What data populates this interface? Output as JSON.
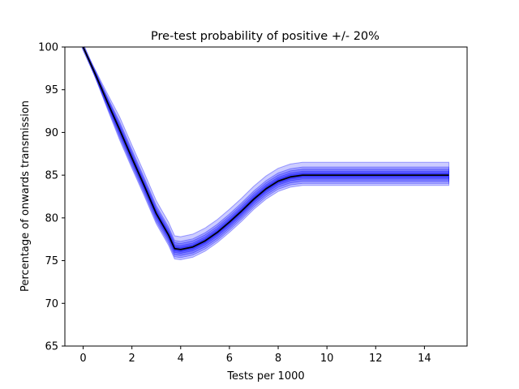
{
  "chart_data": {
    "type": "line",
    "title": "Pre-test probability of positive +/- 20%",
    "xlabel": "Tests per 1000",
    "ylabel": "Percentage of onwards transmission",
    "xlim": [
      -0.75,
      15.75
    ],
    "ylim": [
      65,
      100
    ],
    "xticks": [
      0,
      2,
      4,
      6,
      8,
      10,
      12,
      14
    ],
    "yticks": [
      65,
      70,
      75,
      80,
      85,
      90,
      95,
      100
    ],
    "grid": false,
    "colors": {
      "band": "#0000ff",
      "central": "#000000",
      "central_glow": "#3a3aff"
    },
    "x": [
      0,
      0.5,
      1.0,
      1.5,
      2.0,
      2.5,
      3.0,
      3.5,
      3.75,
      4.0,
      4.5,
      5.0,
      5.5,
      6.0,
      6.5,
      7.0,
      7.5,
      8.0,
      8.5,
      9.0,
      9.5,
      10.0,
      11.0,
      12.0,
      13.0,
      14.0,
      15.0
    ],
    "central": [
      100,
      96.8,
      93.5,
      90.3,
      87.0,
      83.8,
      80.5,
      78.0,
      76.4,
      76.3,
      76.6,
      77.3,
      78.3,
      79.5,
      80.8,
      82.2,
      83.4,
      84.3,
      84.8,
      85.0,
      85.0,
      85.0,
      85.0,
      85.0,
      85.0,
      85.0,
      85.0
    ],
    "band_offsets": [
      0.25,
      0.45,
      0.7,
      0.95,
      1.2
    ],
    "band_outer_upper_extra": 0.3
  }
}
